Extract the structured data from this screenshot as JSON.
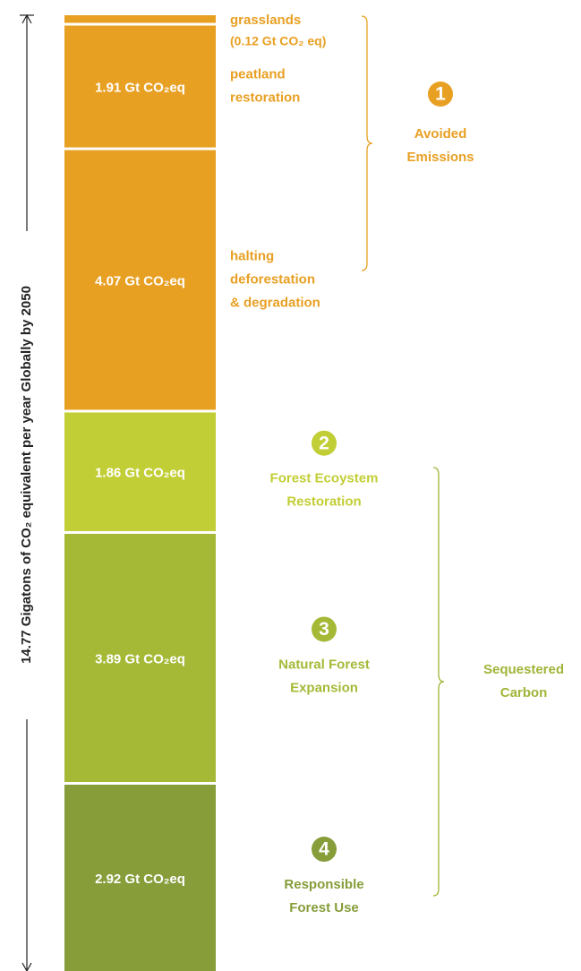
{
  "chart_data": {
    "type": "stacked_column",
    "axis_label": "14.77 Gigatons of CO₂ equivalent per year Globally by 2050",
    "series": [
      {
        "name": [
          "grasslands"
        ],
        "color": "#e8a023",
        "values": [
          0.12
        ],
        "value_labels": [
          "(0.12 Gt CO₂ eq)"
        ]
      },
      {
        "name": [
          "peatland",
          "restoration"
        ],
        "color": "#e8a023",
        "values": [
          1.91
        ],
        "value_labels": [
          "1.91 Gt CO₂eq"
        ]
      },
      {
        "name": [
          "halting",
          "deforestation",
          "& degradation"
        ],
        "color": "#e8a023",
        "values": [
          4.07
        ],
        "value_labels": [
          "4.07 Gt CO₂eq"
        ]
      },
      {
        "name": [
          "Forest Ecoystem",
          "Restoration"
        ],
        "badge": "2",
        "color": "#c2ce35",
        "values": [
          1.86
        ],
        "value_labels": [
          "1.86 Gt CO₂eq"
        ]
      },
      {
        "name": [
          "Natural Forest",
          "Expansion"
        ],
        "badge": "3",
        "color": "#a5b936",
        "values": [
          3.89
        ],
        "value_labels": [
          "3.89 Gt CO₂eq"
        ]
      },
      {
        "name": [
          "Responsible",
          "Forest Use"
        ],
        "badge": "4",
        "color": "#869d3a",
        "values": [
          2.92
        ],
        "value_labels": [
          "2.92 Gt CO₂eq"
        ]
      }
    ],
    "groups": [
      {
        "name": [
          "Avoided",
          "Emissions"
        ],
        "badge": "1",
        "color": "#e8a023"
      },
      {
        "name": [
          "Sequestered",
          "Carbon"
        ],
        "color": "#9fb537"
      }
    ]
  }
}
